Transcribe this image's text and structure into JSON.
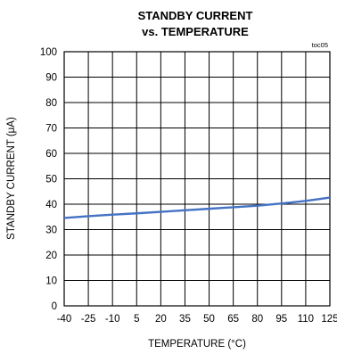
{
  "chart_data": {
    "type": "line",
    "title": "STANDBY CURRENT",
    "subtitle": "vs. TEMPERATURE",
    "note": "toc05",
    "xlabel": "TEMPERATURE (°C)",
    "ylabel": "STANDBY CURRENT (μA)",
    "xlim": [
      -40,
      125
    ],
    "ylim": [
      0,
      100
    ],
    "x_ticks": [
      -40,
      -25,
      -10,
      5,
      20,
      35,
      50,
      65,
      80,
      95,
      110,
      125
    ],
    "y_ticks": [
      0,
      10,
      20,
      30,
      40,
      50,
      60,
      70,
      80,
      90,
      100
    ],
    "grid": true,
    "line_color": "#4472c4",
    "series": [
      {
        "x": [
          -40,
          -25,
          -10,
          5,
          20,
          35,
          50,
          65,
          80,
          95,
          110,
          125
        ],
        "values": [
          34.6,
          35.3,
          35.9,
          36.4,
          37.0,
          37.6,
          38.2,
          38.8,
          39.4,
          40.3,
          41.3,
          42.6
        ]
      }
    ]
  }
}
